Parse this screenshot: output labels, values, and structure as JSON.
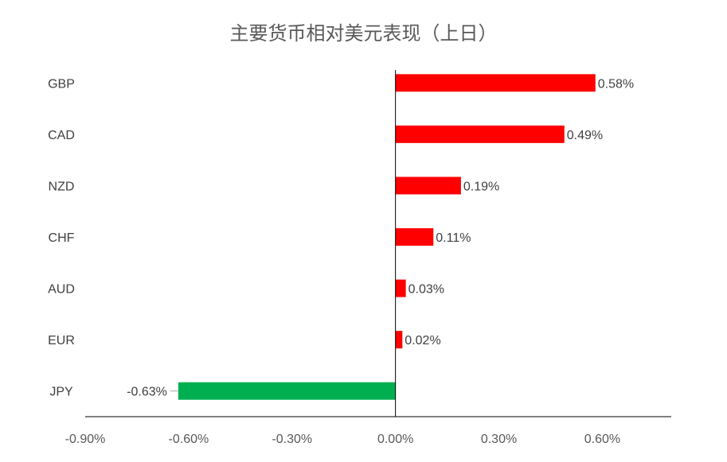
{
  "chart_data": {
    "type": "bar",
    "orientation": "horizontal",
    "title": "主要货币相对美元表现（上日）",
    "categories": [
      "GBP",
      "CAD",
      "NZD",
      "CHF",
      "AUD",
      "EUR",
      "JPY"
    ],
    "values": [
      0.58,
      0.49,
      0.19,
      0.11,
      0.03,
      0.02,
      -0.63
    ],
    "data_labels": [
      "0.58%",
      "0.49%",
      "0.19%",
      "0.11%",
      "0.03%",
      "0.02%",
      "-0.63%"
    ],
    "xlim": [
      -0.9,
      0.8
    ],
    "xticks": [
      -0.9,
      -0.6,
      -0.3,
      0.0,
      0.3,
      0.6
    ],
    "xtick_labels": [
      "-0.90%",
      "-0.60%",
      "-0.30%",
      "0.00%",
      "0.30%",
      "0.60%"
    ],
    "xlabel": "",
    "ylabel": "",
    "grid": false,
    "legend": "none",
    "colors": {
      "positive": "#ff0000",
      "negative": "#00b050",
      "axis": "#000000",
      "text": "#404040"
    }
  }
}
